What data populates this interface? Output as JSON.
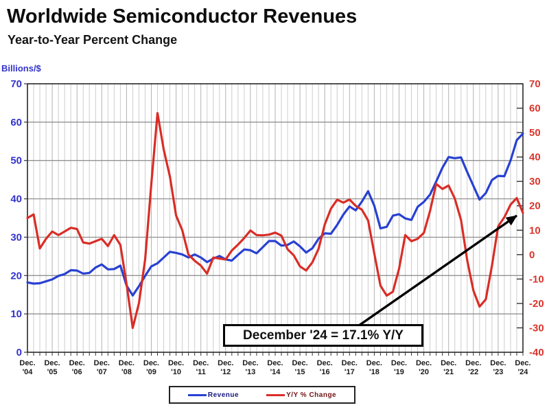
{
  "header": {
    "title": "Worldwide Semiconductor Revenues",
    "subtitle": "Year-to-Year Percent Change"
  },
  "chart_data": {
    "type": "line",
    "title": "Worldwide Semiconductor Revenues",
    "subtitle": "Year-to-Year Percent Change",
    "x_start": "Dec '04",
    "x_end": "Dec '24",
    "x_interval": "quarterly",
    "x_tick_prefix": "Dec.",
    "x_tick_years": [
      "'04",
      "'05",
      "'06",
      "'07",
      "'08",
      "'09",
      "'10",
      "'11",
      "'12",
      "'13",
      "'14",
      "'15",
      "'16",
      "'17",
      "'18",
      "'19",
      "'20",
      "'21",
      "'22",
      "'23",
      "'24"
    ],
    "grid": {
      "horizontal": true,
      "vertical": true
    },
    "left_axis": {
      "label": "Billions/$",
      "min": 0,
      "max": 70,
      "tick_step": 10,
      "color": "#3333cc"
    },
    "right_axis": {
      "label": "Y/Y % Change",
      "min": -40,
      "max": 70,
      "tick_step": 10,
      "color": "#d9352c"
    },
    "series": [
      {
        "name": "Revenue",
        "axis": "left",
        "color": "#2840d2",
        "values": [
          18.2,
          17.9,
          18.0,
          18.5,
          19.0,
          19.9,
          20.4,
          21.4,
          21.3,
          20.5,
          20.7,
          22.1,
          22.9,
          21.6,
          21.7,
          22.6,
          17.4,
          14.8,
          17.2,
          19.9,
          22.4,
          23.2,
          24.7,
          26.2,
          25.9,
          25.5,
          24.7,
          25.5,
          24.7,
          23.5,
          24.4,
          25.1,
          24.2,
          23.9,
          25.4,
          26.8,
          26.6,
          25.8,
          27.4,
          29.0,
          29.0,
          27.8,
          28.0,
          28.9,
          27.6,
          26.0,
          27.1,
          29.6,
          31.0,
          30.9,
          33.2,
          35.9,
          38.0,
          37.0,
          39.3,
          42.0,
          38.2,
          32.3,
          32.7,
          35.6,
          36.0,
          34.9,
          34.5,
          37.9,
          39.2,
          41.1,
          44.5,
          48.1,
          50.9,
          50.6,
          50.8,
          47.0,
          43.4,
          39.8,
          41.5,
          44.9,
          46.0,
          45.9,
          50.0,
          55.3,
          57.0
        ]
      },
      {
        "name": "Y/Y % Change",
        "axis": "right",
        "color": "#d92d26",
        "values": [
          15.0,
          16.5,
          2.5,
          6.5,
          9.5,
          8.0,
          9.5,
          11.0,
          10.5,
          5.0,
          4.5,
          5.5,
          6.5,
          3.5,
          8.0,
          4.0,
          -12.0,
          -30.0,
          -20.0,
          -2.0,
          29.0,
          58.0,
          43.0,
          32.0,
          16.0,
          10.0,
          0.0,
          -2.5,
          -4.5,
          -7.8,
          -1.2,
          -1.6,
          -2.0,
          1.7,
          4.1,
          6.8,
          9.9,
          8.0,
          7.9,
          8.2,
          9.0,
          7.8,
          2.2,
          -0.3,
          -4.8,
          -6.5,
          -3.2,
          2.4,
          12.3,
          18.8,
          22.5,
          21.3,
          22.6,
          20.0,
          18.4,
          14.0,
          0.5,
          -12.7,
          -16.8,
          -15.2,
          -5.8,
          8.0,
          5.5,
          6.5,
          8.9,
          17.8,
          29.0,
          26.9,
          28.3,
          23.0,
          14.2,
          -2.3,
          -14.7,
          -21.3,
          -18.3,
          -4.5,
          11.6,
          15.3,
          20.5,
          23.2,
          17.1
        ]
      }
    ],
    "annotation": {
      "text": "December '24 = 17.1% Y/Y",
      "points_to": "Dec '24 Y/Y % Change value",
      "value": 17.1
    },
    "legend": {
      "position": "bottom-center",
      "items": [
        {
          "label": "Revenue",
          "color": "#2840d2",
          "text_color": "#16167d"
        },
        {
          "label": "Y/Y % Change",
          "color": "#d92d26",
          "text_color": "#701414"
        }
      ]
    }
  }
}
